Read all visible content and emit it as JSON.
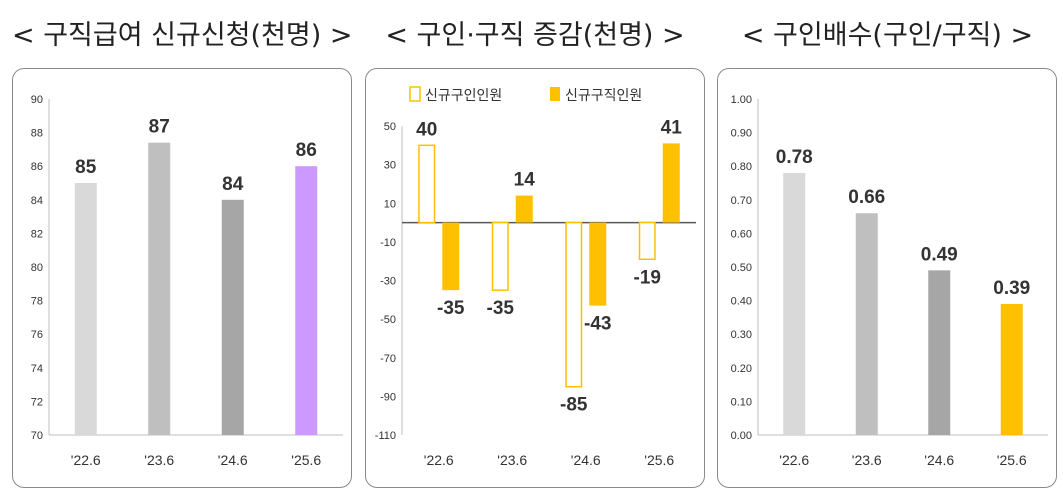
{
  "titles": {
    "left": "< 구직급여 신규신청(천명) >",
    "middle": "< 구인·구직 증감(천명) >",
    "right": "< 구인배수(구인/구직) >"
  },
  "chart_data": [
    {
      "type": "bar",
      "title": "< 구직급여 신규신청(천명) >",
      "categories": [
        "'22.6",
        "'23.6",
        "'24.6",
        "'25.6"
      ],
      "values": [
        85,
        87.4,
        84,
        86
      ],
      "data_labels": [
        "85",
        "87",
        "84",
        "86"
      ],
      "colors": [
        "#d9d9d9",
        "#bfbfbf",
        "#a6a6a6",
        "#cc99ff"
      ],
      "ylim": [
        70,
        90
      ],
      "yticks": [
        "70",
        "72",
        "74",
        "76",
        "78",
        "80",
        "82",
        "84",
        "86",
        "88",
        "90"
      ],
      "grid": false
    },
    {
      "type": "bar",
      "title": "< 구인·구직 증감(천명) >",
      "categories": [
        "'22.6",
        "'23.6",
        "'24.6",
        "'25.6"
      ],
      "series": [
        {
          "name": "신규구인인원",
          "values": [
            40,
            -35,
            -85,
            -19
          ],
          "labels": [
            "40",
            "-35",
            "-85",
            "-19"
          ],
          "color": "#ffc000",
          "style": "outline"
        },
        {
          "name": "신규구직인원",
          "values": [
            -35,
            14,
            -43,
            41
          ],
          "labels": [
            "-35",
            "14",
            "-43",
            "41"
          ],
          "color": "#ffc000",
          "style": "filled"
        }
      ],
      "ylim": [
        -110,
        50
      ],
      "yticks": [
        "50",
        "30",
        "10",
        "-10",
        "-30",
        "-50",
        "-70",
        "-90",
        "-110"
      ],
      "legend": "top-left",
      "grid": false
    },
    {
      "type": "bar",
      "title": "< 구인배수(구인/구직) >",
      "categories": [
        "'22.6",
        "'23.6",
        "'24.6",
        "'25.6"
      ],
      "values": [
        0.78,
        0.66,
        0.49,
        0.39
      ],
      "data_labels": [
        "0.78",
        "0.66",
        "0.49",
        "0.39"
      ],
      "colors": [
        "#d9d9d9",
        "#bfbfbf",
        "#a6a6a6",
        "#ffc000"
      ],
      "ylim": [
        0,
        1
      ],
      "yticks": [
        "0.00",
        "0.10",
        "0.20",
        "0.30",
        "0.40",
        "0.50",
        "0.60",
        "0.70",
        "0.80",
        "0.90",
        "1.00"
      ],
      "grid": false
    }
  ]
}
